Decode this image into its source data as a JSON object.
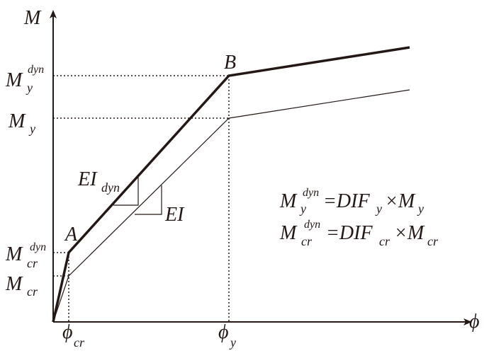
{
  "axes": {
    "y_label": "M",
    "x_label": "ϕ"
  },
  "points": {
    "a": "A",
    "b": "B"
  },
  "y_labels": {
    "my_dyn": {
      "base": "M",
      "sub": "y",
      "sup": "dyn"
    },
    "my": {
      "base": "M",
      "sub": "y"
    },
    "mcr_dyn": {
      "base": "M",
      "sub": "cr",
      "sup": "dyn"
    },
    "mcr": {
      "base": "M",
      "sub": "cr"
    }
  },
  "x_labels": {
    "phi_cr": {
      "base": "ϕ",
      "sub": "cr"
    },
    "phi_y": {
      "base": "ϕ",
      "sub": "y"
    }
  },
  "stiffness": {
    "ei_dyn": {
      "base": "EI",
      "sub": "dyn"
    },
    "ei": {
      "base": "EI"
    }
  },
  "equations": [
    {
      "lhs": "M",
      "lhs_sup": "dyn",
      "lhs_sub": "y",
      "factor": "=DIF",
      "factor_sub": "y",
      "rhs": "×M",
      "rhs_sub": "y"
    },
    {
      "lhs": "M",
      "lhs_sup": "dyn",
      "lhs_sub": "cr",
      "factor": "=DIF",
      "factor_sub": "cr",
      "rhs": "×M",
      "rhs_sub": "cr"
    }
  ]
}
